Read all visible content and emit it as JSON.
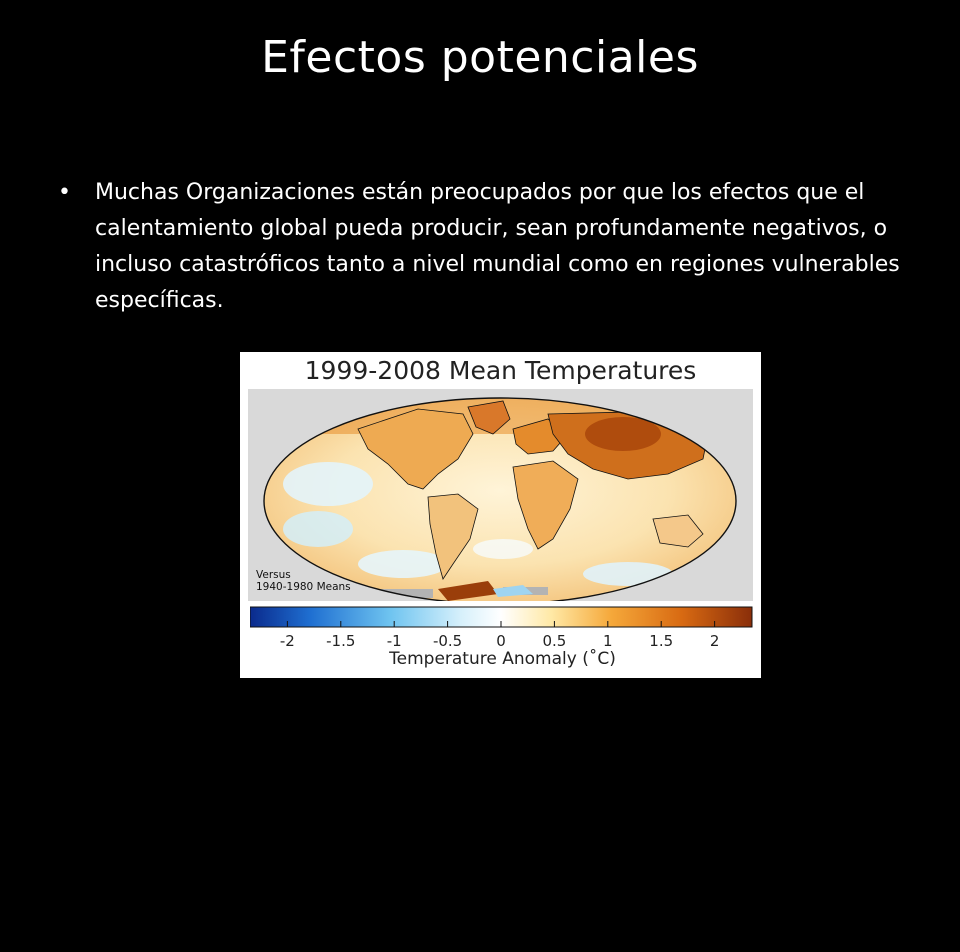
{
  "slide": {
    "title": "Efectos potenciales",
    "bullets": [
      "Muchas Organizaciones están preocupados por que los efectos que el calentamiento global pueda producir, sean profundamente negativos, o incluso catastróficos tanto a nivel mundial como en regiones vulnerables específicas."
    ]
  },
  "figure": {
    "title": "1999-2008 Mean Temperatures",
    "note_line1": "Versus",
    "note_line2": "1940-1980 Means",
    "colorbar": {
      "label": "Temperature Anomaly (˚C)",
      "ticks": [
        "-2",
        "-1.5",
        "-1",
        "-0.5",
        "0",
        "0.5",
        "1",
        "1.5",
        "2"
      ],
      "range": [
        -2.35,
        2.35
      ],
      "colors": [
        "#0a2a8c",
        "#1f6fd1",
        "#6fc4f0",
        "#d6f0fb",
        "#ffffff",
        "#ffe9a6",
        "#f5a83a",
        "#d86a12",
        "#8a2e0a"
      ]
    },
    "colors": {
      "ocean_base": "#fbe6b8",
      "land_warm": "#e89a3c",
      "hot": "#b84f0e",
      "cool": "#bfe6f6",
      "no_data": "#b3b3b3",
      "coast": "#111111"
    }
  }
}
